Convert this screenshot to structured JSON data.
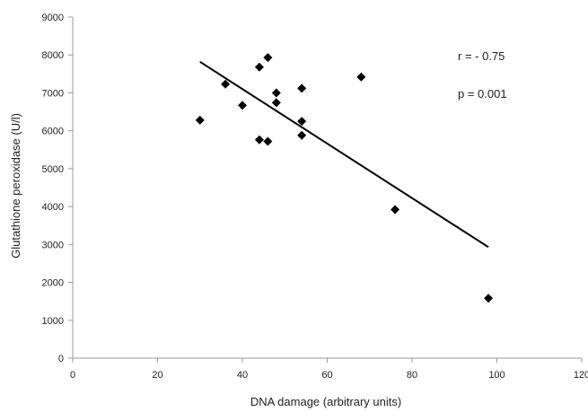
{
  "chart_data": {
    "type": "scatter",
    "xlabel": "DNA damage (arbitrary units)",
    "ylabel": "Glutathione peroxidase (U/l)",
    "xlim": [
      0,
      120
    ],
    "ylim": [
      0,
      9000
    ],
    "x_ticks": [
      "0",
      "20",
      "40",
      "60",
      "80",
      "100",
      "120"
    ],
    "y_ticks": [
      "0",
      "1000",
      "2000",
      "3000",
      "4000",
      "5000",
      "6000",
      "7000",
      "8000",
      "9000"
    ],
    "grid": false,
    "legend": "none",
    "marker": "diamond",
    "marker_color": "#000000",
    "points": [
      {
        "x": 30,
        "y": 6280
      },
      {
        "x": 36,
        "y": 7230
      },
      {
        "x": 40,
        "y": 6670
      },
      {
        "x": 44,
        "y": 7680
      },
      {
        "x": 44,
        "y": 5760
      },
      {
        "x": 46,
        "y": 7930
      },
      {
        "x": 46,
        "y": 5720
      },
      {
        "x": 48,
        "y": 7000
      },
      {
        "x": 48,
        "y": 6740
      },
      {
        "x": 54,
        "y": 7120
      },
      {
        "x": 54,
        "y": 6250
      },
      {
        "x": 54,
        "y": 5880
      },
      {
        "x": 68,
        "y": 7420
      },
      {
        "x": 76,
        "y": 3920
      },
      {
        "x": 98,
        "y": 1580
      }
    ],
    "trendline": {
      "x": [
        30,
        98
      ],
      "y": [
        7820,
        2930
      ],
      "color": "#000000"
    },
    "annotations": [
      "r = - 0.75",
      "p = 0.001"
    ]
  }
}
